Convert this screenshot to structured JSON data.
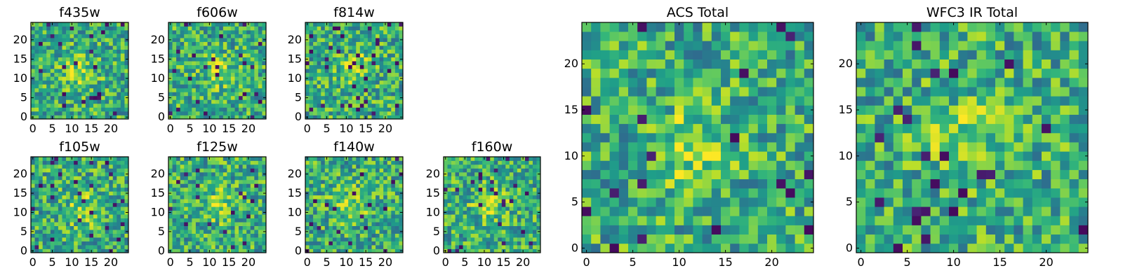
{
  "chart_data": [
    {
      "type": "heatmap",
      "title": "f435w",
      "grid_size": [
        25,
        25
      ],
      "xlim": [
        -0.5,
        24.5
      ],
      "ylim": [
        -0.5,
        24.5
      ],
      "xticks": [
        0,
        5,
        10,
        15,
        20
      ],
      "yticks": [
        0,
        5,
        10,
        15,
        20
      ],
      "colormap": "viridis",
      "grid": false
    },
    {
      "type": "heatmap",
      "title": "f606w",
      "grid_size": [
        25,
        25
      ],
      "xlim": [
        -0.5,
        24.5
      ],
      "ylim": [
        -0.5,
        24.5
      ],
      "xticks": [
        0,
        5,
        10,
        15,
        20
      ],
      "yticks": [
        0,
        5,
        10,
        15,
        20
      ],
      "colormap": "viridis",
      "grid": false
    },
    {
      "type": "heatmap",
      "title": "f814w",
      "grid_size": [
        25,
        25
      ],
      "xlim": [
        -0.5,
        24.5
      ],
      "ylim": [
        -0.5,
        24.5
      ],
      "xticks": [
        0,
        5,
        10,
        15,
        20
      ],
      "yticks": [
        0,
        5,
        10,
        15,
        20
      ],
      "colormap": "viridis",
      "grid": false
    },
    {
      "type": "heatmap",
      "title": "f105w",
      "grid_size": [
        25,
        25
      ],
      "xlim": [
        -0.5,
        24.5
      ],
      "ylim": [
        -0.5,
        24.5
      ],
      "xticks": [
        0,
        5,
        10,
        15,
        20
      ],
      "yticks": [
        0,
        5,
        10,
        15,
        20
      ],
      "colormap": "viridis",
      "grid": false
    },
    {
      "type": "heatmap",
      "title": "f125w",
      "grid_size": [
        25,
        25
      ],
      "xlim": [
        -0.5,
        24.5
      ],
      "ylim": [
        -0.5,
        24.5
      ],
      "xticks": [
        0,
        5,
        10,
        15,
        20
      ],
      "yticks": [
        0,
        5,
        10,
        15,
        20
      ],
      "colormap": "viridis",
      "grid": false
    },
    {
      "type": "heatmap",
      "title": "f140w",
      "grid_size": [
        25,
        25
      ],
      "xlim": [
        -0.5,
        24.5
      ],
      "ylim": [
        -0.5,
        24.5
      ],
      "xticks": [
        0,
        5,
        10,
        15,
        20
      ],
      "yticks": [
        0,
        5,
        10,
        15,
        20
      ],
      "colormap": "viridis",
      "grid": false
    },
    {
      "type": "heatmap",
      "title": "f160w",
      "grid_size": [
        25,
        25
      ],
      "xlim": [
        -0.5,
        24.5
      ],
      "ylim": [
        -0.5,
        24.5
      ],
      "xticks": [
        0,
        5,
        10,
        15,
        20
      ],
      "yticks": [
        0,
        5,
        10,
        15,
        20
      ],
      "colormap": "viridis",
      "grid": false
    },
    {
      "type": "heatmap",
      "title": "ACS Total",
      "grid_size": [
        25,
        25
      ],
      "xlim": [
        -0.5,
        24.5
      ],
      "ylim": [
        -0.5,
        24.5
      ],
      "xticks": [
        0,
        5,
        10,
        15,
        20
      ],
      "yticks": [
        0,
        5,
        10,
        15,
        20
      ],
      "colormap": "viridis",
      "grid": false
    },
    {
      "type": "heatmap",
      "title": "WFC3 IR Total",
      "grid_size": [
        25,
        25
      ],
      "xlim": [
        -0.5,
        24.5
      ],
      "ylim": [
        -0.5,
        24.5
      ],
      "xticks": [
        0,
        5,
        10,
        15,
        20
      ],
      "yticks": [
        0,
        5,
        10,
        15,
        20
      ],
      "colormap": "viridis",
      "grid": false
    }
  ]
}
